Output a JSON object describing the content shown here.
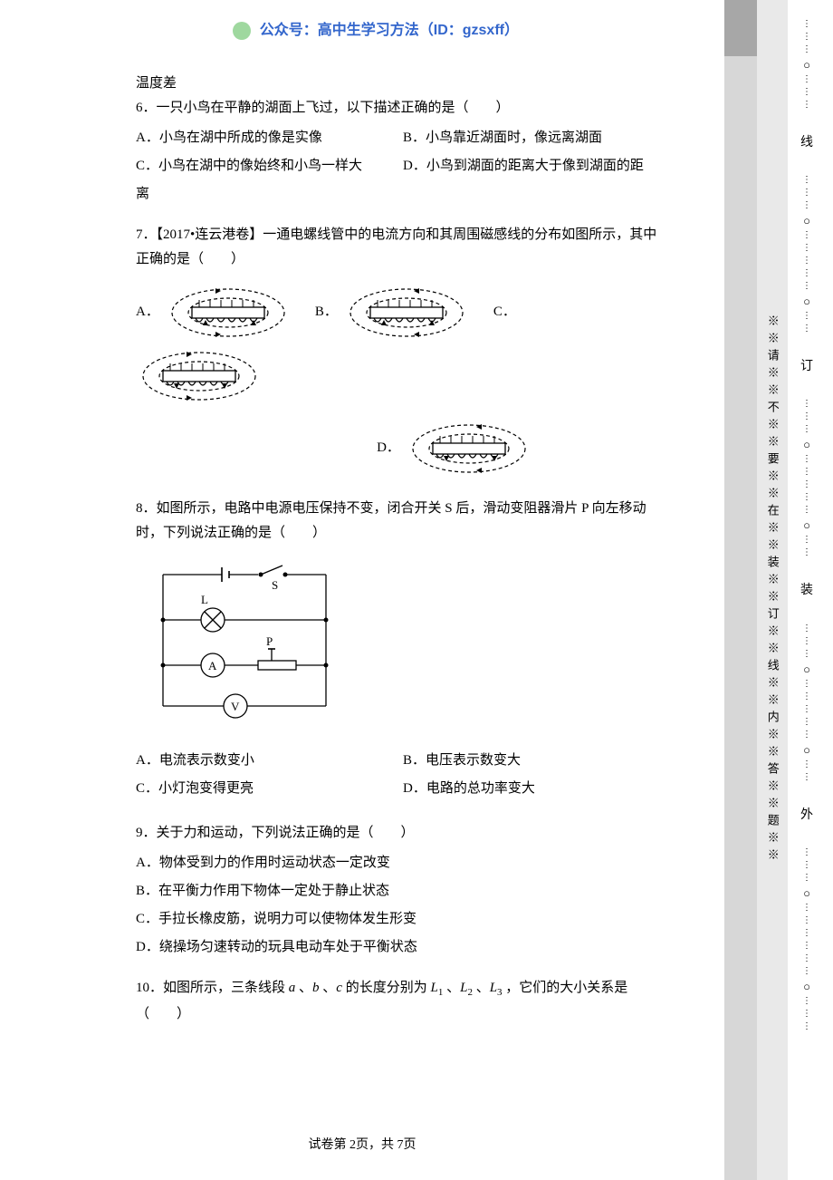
{
  "header": {
    "text": "公众号：高中生学习方法（ID：gzsxff）",
    "logo_color": "#9fd89f",
    "text_color": "#3366cc"
  },
  "intro_tail": "温度差",
  "q6": {
    "stem": "6．一只小鸟在平静的湖面上飞过，以下描述正确的是（　　）",
    "a": "A．小鸟在湖中所成的像是实像",
    "b": "B．小鸟靠近湖面时，像远离湖面",
    "c": "C．小鸟在湖中的像始终和小鸟一样大",
    "d": "D．小鸟到湖面的距离大于像到湖面的距",
    "d_tail": "离"
  },
  "q7": {
    "stem": "7．【2017•连云港卷】一通电螺线管中的电流方向和其周围磁感线的分布如图所示，其中正确的是（　　）",
    "a": "A．",
    "b": "B．",
    "c": "C．",
    "d": "D．"
  },
  "q8": {
    "stem": "8．如图所示，电路中电源电压保持不变，闭合开关 S 后，滑动变阻器滑片 P 向左移动时，下列说法正确的是（　　）",
    "a": "A．电流表示数变小",
    "b": "B．电压表示数变大",
    "c": "C．小灯泡变得更亮",
    "d": "D．电路的总功率变大"
  },
  "q9": {
    "stem": "9．关于力和运动，下列说法正确的是（　　）",
    "a": "A．物体受到力的作用时运动状态一定改变",
    "b": "B．在平衡力作用下物体一定处于静止状态",
    "c": "C．手拉长橡皮筋，说明力可以使物体发生形变",
    "d": "D．绕操场匀速转动的玩具电动车处于平衡状态"
  },
  "q10": {
    "stem_prefix": "10．如图所示，三条线段 ",
    "a": "a",
    "b": "b",
    "c": "c",
    "stem_mid": " 的长度分别为 ",
    "L": "L",
    "stem_suffix": " ，它们的大小关系是（　　）"
  },
  "footer": "试卷第 2页，共 7页",
  "margin": {
    "vertical_text": "※※请※※不※※要※※在※※装※※订※※线※※内※※答※※题※※",
    "chars": [
      "线",
      "订",
      "装",
      "外"
    ]
  },
  "colors": {
    "text": "#000000",
    "bg": "#ffffff",
    "gray_strip": "#d7d7d7",
    "gray_block": "#a7a7a7",
    "margin_bg": "#e9e9e9"
  }
}
